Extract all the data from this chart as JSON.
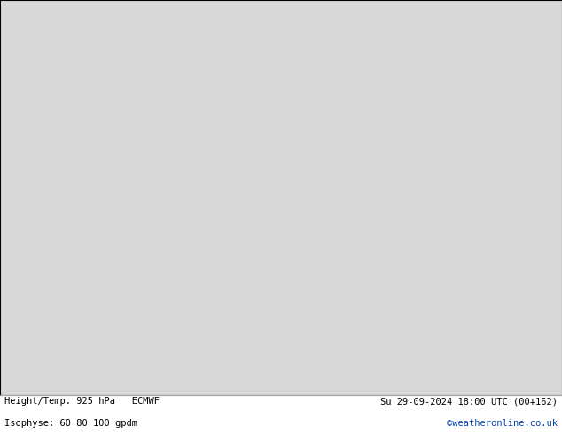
{
  "title_left": "Height/Temp. 925 hPa   ECMWF",
  "title_right": "Su 29-09-2024 18:00 UTC (00+162)",
  "subtitle_left": "Isophyse: 60 80 100 gpdm",
  "subtitle_right": "©weatheronline.co.uk",
  "ocean_color": "#d8d8d8",
  "land_color": "#c8f0a0",
  "border_color": "#606060",
  "coastline_color": "#606060",
  "contour_color": "#505050",
  "orange_color": "#ff8c00",
  "cyan_color": "#00bcd4",
  "blue_color": "#1e90ff",
  "magenta_color": "#ff00cc",
  "purple_color": "#9900cc",
  "teal_color": "#00aaaa",
  "footer_color": "#000000",
  "watermark_color": "#0044aa",
  "figsize": [
    6.34,
    4.9
  ],
  "dpi": 100,
  "map_extent": [
    -11.5,
    8.5,
    34.0,
    47.5
  ]
}
